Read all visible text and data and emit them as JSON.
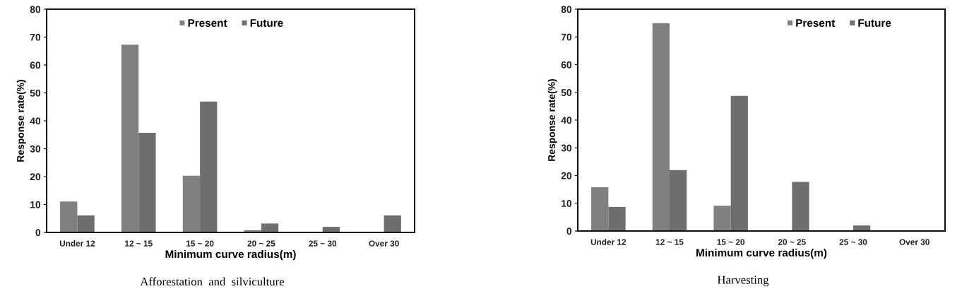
{
  "chart_data": [
    {
      "type": "bar",
      "title": "Afforestation  and  silviculture",
      "xlabel": "Minimum curve radius(m)",
      "ylabel": "Response rate(%)",
      "categories": [
        "Under 12",
        "12 ~ 15",
        "15 ~ 20",
        "20 ~ 25",
        "25 ~ 30",
        "Over 30"
      ],
      "series": [
        {
          "name": "Present",
          "color": "#808080",
          "values": [
            11.1,
            67.3,
            20.3,
            0.8,
            0,
            0
          ]
        },
        {
          "name": "Future",
          "color": "#6e6e6e",
          "values": [
            6.1,
            35.7,
            46.9,
            3.2,
            2,
            6.1
          ]
        }
      ],
      "ylim": [
        0,
        80
      ],
      "yticks": [
        0,
        10,
        20,
        30,
        40,
        50,
        60,
        70,
        80
      ],
      "legend": "top"
    },
    {
      "type": "bar",
      "title": "Harvesting",
      "xlabel": "Minimum curve radius(m)",
      "ylabel": "Response rate(%)",
      "categories": [
        "Under 12",
        "12 ~ 15",
        "15 ~ 20",
        "20 ~ 25",
        "25 ~ 30",
        "Over 30"
      ],
      "series": [
        {
          "name": "Present",
          "color": "#808080",
          "values": [
            15.8,
            75,
            9.1,
            0,
            0,
            0
          ]
        },
        {
          "name": "Future",
          "color": "#6e6e6e",
          "values": [
            8.7,
            22,
            48.7,
            17.7,
            2,
            0
          ]
        }
      ],
      "ylim": [
        0,
        80
      ],
      "yticks": [
        0,
        10,
        20,
        30,
        40,
        50,
        60,
        70,
        80
      ],
      "legend": "top right"
    }
  ]
}
